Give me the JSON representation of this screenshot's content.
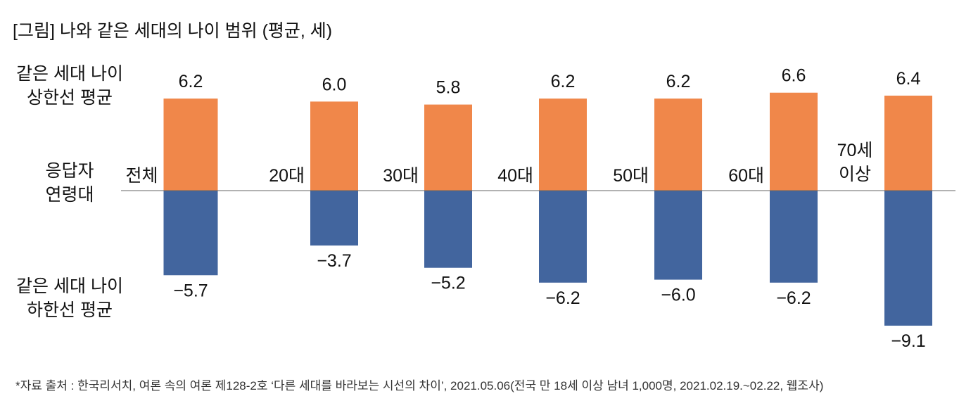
{
  "chart_data": {
    "type": "bar",
    "title": "[그림] 나와 같은 세대의 나이 범위 (평균, 세)",
    "categories": [
      "전체",
      "20대",
      "30대",
      "40대",
      "50대",
      "60대",
      "70세 이상"
    ],
    "series": [
      {
        "name": "같은 세대 나이 상한선 평균",
        "color": "#F0874A",
        "values": [
          6.2,
          6.0,
          5.8,
          6.2,
          6.2,
          6.6,
          6.4
        ],
        "labels": [
          "6.2",
          "6.0",
          "5.8",
          "6.2",
          "6.2",
          "6.6",
          "6.4"
        ]
      },
      {
        "name": "같은 세대 나이 하한선 평균",
        "color": "#42659E",
        "values": [
          -5.7,
          -3.7,
          -5.2,
          -6.2,
          -6.0,
          -6.2,
          -9.1
        ],
        "labels": [
          "−5.7",
          "−3.7",
          "−5.2",
          "−6.2",
          "−6.0",
          "−6.2",
          "−9.1"
        ]
      }
    ],
    "category_axis_label": "응답자 연령대",
    "upper_label": [
      "같은 세대 나이",
      "상한선 평균"
    ],
    "lower_label": [
      "같은 세대 나이",
      "하한선 평균"
    ],
    "axis_label": [
      "응답자",
      "연령대"
    ],
    "ylim": [
      -9.5,
      7
    ],
    "grid": false,
    "footnote": "*자료 출처 : 한국리서치, 여론 속의 여론 제128-2호 ‘다른 세대를 바라보는 시선의 차이’, 2021.05.06(전국 만 18세 이상 남녀 1,000명, 2021.02.19.~02.22, 웹조사)"
  }
}
